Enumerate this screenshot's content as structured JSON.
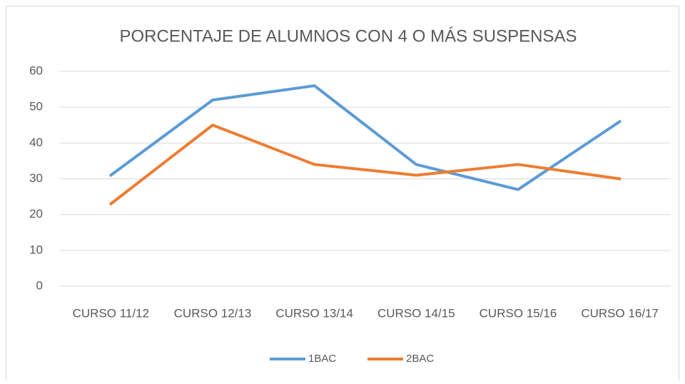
{
  "chart_data": {
    "type": "line",
    "title": "PORCENTAJE DE ALUMNOS CON 4 O MÁS SUSPENSAS",
    "categories": [
      "CURSO 11/12",
      "CURSO 12/13",
      "CURSO 13/14",
      "CURSO 14/15",
      "CURSO 15/16",
      "CURSO 16/17"
    ],
    "series": [
      {
        "name": "1BAC",
        "color": "#5b9bd5",
        "values": [
          31,
          52,
          56,
          34,
          27,
          46
        ]
      },
      {
        "name": "2BAC",
        "color": "#ed7d31",
        "values": [
          23,
          45,
          34,
          31,
          34,
          30
        ]
      }
    ],
    "ylim": [
      0,
      60
    ],
    "yticks": [
      0,
      10,
      20,
      30,
      40,
      50,
      60
    ],
    "grid": true,
    "legend": "bottom"
  }
}
